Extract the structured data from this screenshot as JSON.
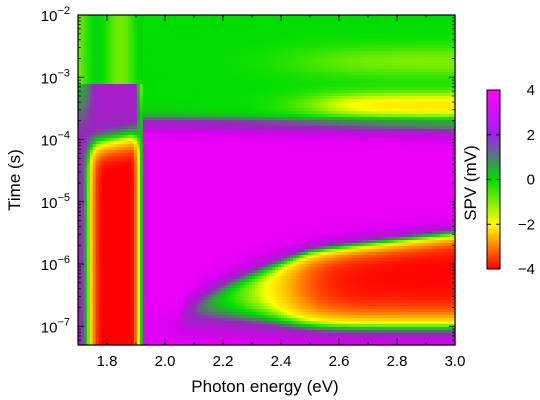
{
  "chart_data": {
    "type": "heatmap",
    "xlabel": "Photon energy (eV)",
    "ylabel": "Time (s)",
    "x_range": [
      1.7,
      3.0
    ],
    "x_ticks": [
      1.8,
      2.0,
      2.2,
      2.4,
      2.6,
      2.8,
      3.0
    ],
    "x_tick_labels": [
      "1.8",
      "2.0",
      "2.2",
      "2.4",
      "2.6",
      "2.8",
      "3.0"
    ],
    "y_scale": "log",
    "y_range": [
      5e-08,
      0.01
    ],
    "y_ticks": [
      1e-07,
      1e-06,
      1e-05,
      0.0001,
      0.001,
      0.01
    ],
    "y_tick_labels": [
      {
        "base": "10",
        "exp": "−7"
      },
      {
        "base": "10",
        "exp": "−6"
      },
      {
        "base": "10",
        "exp": "−5"
      },
      {
        "base": "10",
        "exp": "−4"
      },
      {
        "base": "10",
        "exp": "−3"
      },
      {
        "base": "10",
        "exp": "−2"
      }
    ],
    "colorbar": {
      "label": "SPV (mV)",
      "range": [
        -4,
        4
      ],
      "ticks": [
        -4,
        -2,
        0,
        2,
        4
      ],
      "tick_labels": [
        "−4",
        "−2",
        "0",
        "2",
        "4"
      ],
      "colors": [
        "#ff0000",
        "#ffff00",
        "#00dd00",
        "#a020f0",
        "#ff00ff"
      ]
    },
    "grid": false,
    "regions": [
      {
        "feature": "negative signal below band gap",
        "x": [
          1.73,
          1.91
        ],
        "t": [
          5e-08,
          0.0001
        ],
        "spv_mV": -4
      },
      {
        "feature": "positive signal above band gap",
        "x": [
          1.93,
          3.0
        ],
        "t": [
          2e-07,
          0.00012
        ],
        "spv_mV": 3.5
      },
      {
        "feature": "negative signal at short times",
        "x": [
          2.45,
          3.0
        ],
        "t": [
          6e-08,
          5e-07
        ],
        "spv_mV": -4
      },
      {
        "feature": "weak negative signal at long times",
        "x": [
          2.6,
          3.0
        ],
        "t": [
          0.0001,
          0.001
        ],
        "spv_mV": -1.5
      },
      {
        "feature": "near-zero signal at long times",
        "x": [
          1.7,
          3.0
        ],
        "t": [
          0.001,
          0.01
        ],
        "spv_mV": 0
      }
    ]
  }
}
